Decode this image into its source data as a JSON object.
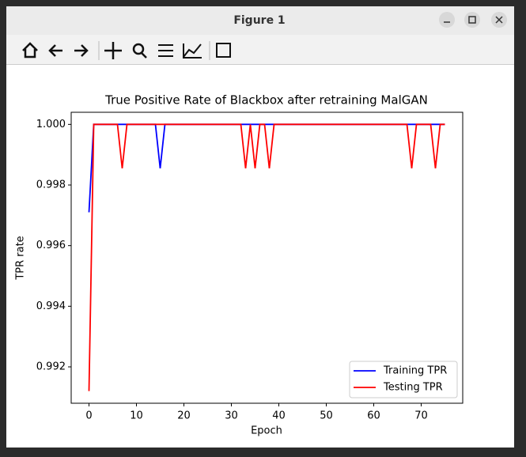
{
  "window": {
    "title": "Figure 1"
  },
  "chart_data": {
    "type": "line",
    "title": "True Positive Rate of Blackbox after retraining MalGAN",
    "x_label": "Epoch",
    "y_label": "TPR rate",
    "x": [
      0,
      1,
      2,
      3,
      4,
      5,
      6,
      7,
      8,
      9,
      10,
      11,
      12,
      13,
      14,
      15,
      16,
      17,
      18,
      19,
      20,
      21,
      22,
      23,
      24,
      25,
      26,
      27,
      28,
      29,
      30,
      31,
      32,
      33,
      34,
      35,
      36,
      37,
      38,
      39,
      40,
      41,
      42,
      43,
      44,
      45,
      46,
      47,
      48,
      49,
      50,
      51,
      52,
      53,
      54,
      55,
      56,
      57,
      58,
      59,
      60,
      61,
      62,
      63,
      64,
      65,
      66,
      67,
      68,
      69,
      70,
      71,
      72,
      73,
      74,
      75
    ],
    "series": [
      {
        "name": "Training TPR",
        "color": "#0000ff",
        "values": [
          0.9971,
          1,
          1,
          1,
          1,
          1,
          1,
          1,
          1,
          1,
          1,
          1,
          1,
          1,
          1,
          0.99855,
          1,
          1,
          1,
          1,
          1,
          1,
          1,
          1,
          1,
          1,
          1,
          1,
          1,
          1,
          1,
          1,
          1,
          1,
          1,
          1,
          1,
          1,
          1,
          1,
          1,
          1,
          1,
          1,
          1,
          1,
          1,
          1,
          1,
          1,
          1,
          1,
          1,
          1,
          1,
          1,
          1,
          1,
          1,
          1,
          1,
          1,
          1,
          1,
          1,
          1,
          1,
          1,
          1,
          1,
          1,
          1,
          1,
          1,
          1,
          1
        ]
      },
      {
        "name": "Testing TPR",
        "color": "#ff0000",
        "values": [
          0.9912,
          1,
          1,
          1,
          1,
          1,
          1,
          0.99855,
          1,
          1,
          1,
          1,
          1,
          1,
          1,
          1,
          1,
          1,
          1,
          1,
          1,
          1,
          1,
          1,
          1,
          1,
          1,
          1,
          1,
          1,
          1,
          1,
          1,
          0.99855,
          1,
          0.99855,
          1,
          1,
          0.99855,
          1,
          1,
          1,
          1,
          1,
          1,
          1,
          1,
          1,
          1,
          1,
          1,
          1,
          1,
          1,
          1,
          1,
          1,
          1,
          1,
          1,
          1,
          1,
          1,
          1,
          1,
          1,
          1,
          1,
          0.99855,
          1,
          1,
          1,
          1,
          0.99855,
          1,
          1
        ]
      }
    ],
    "xlim": [
      -3.75,
      78.75
    ],
    "ylim": [
      0.9908,
      1.0004
    ],
    "xticks": [
      0,
      10,
      20,
      30,
      40,
      50,
      60,
      70
    ],
    "yticks": [
      0.992,
      0.994,
      0.996,
      0.998,
      {
        "value": 1,
        "label": "1.000"
      }
    ],
    "legend": "lower right"
  }
}
